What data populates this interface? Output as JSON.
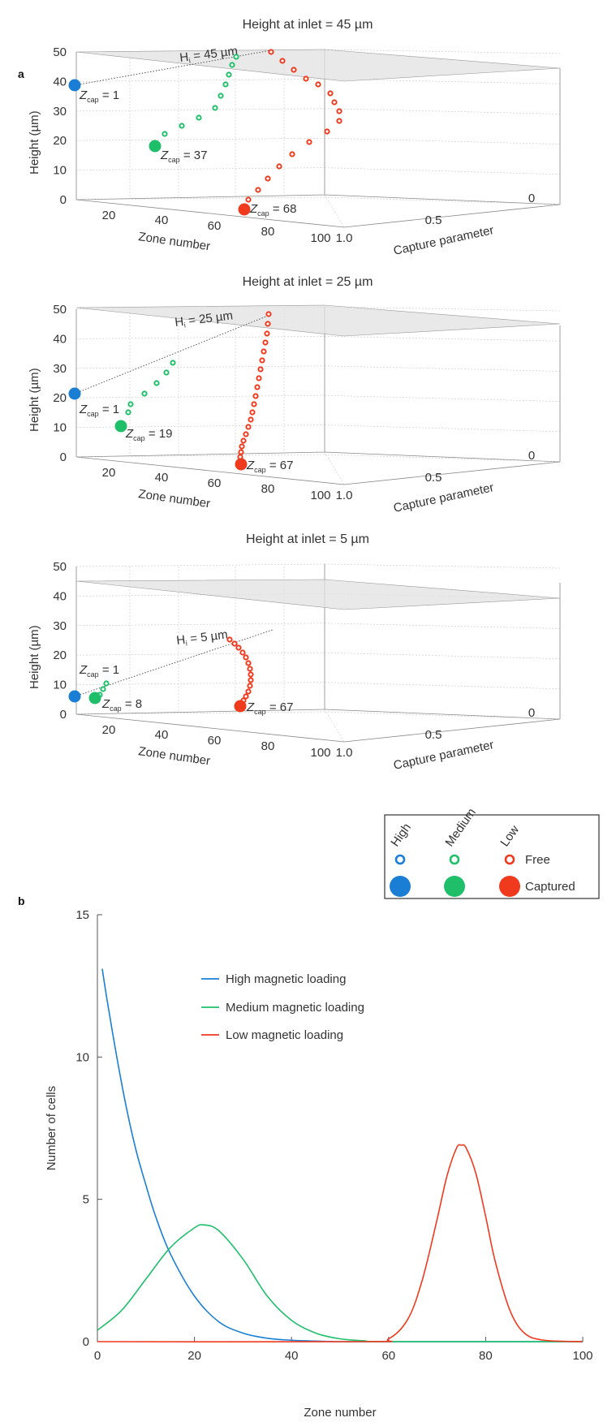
{
  "panel_a_label": "a",
  "panel_b_label": "b",
  "colors": {
    "high": "#1a7fd4",
    "medium": "#1fbf6a",
    "low": "#f03a1e"
  },
  "chart_data": [
    {
      "type": "scatter",
      "panel": "a",
      "title": "Height at inlet = 45 µm",
      "ylabel": "Height (µm)",
      "xlabel": "Zone number",
      "zlabel": "Capture parameter",
      "height_ticks": [
        "0",
        "10",
        "20",
        "30",
        "40",
        "50"
      ],
      "zone_ticks": [
        "20",
        "40",
        "60",
        "80",
        "100"
      ],
      "capture_ticks": [
        "1.0",
        "0.5",
        "0"
      ],
      "inlet_label_main": "H",
      "inlet_label_sub": "i",
      "inlet_label_rest": " = 45 µm",
      "captures": [
        {
          "series": "high",
          "zcap_text": "= 1"
        },
        {
          "series": "medium",
          "zcap_text": "= 37"
        },
        {
          "series": "low",
          "zcap_text": "= 68"
        }
      ]
    },
    {
      "type": "scatter",
      "panel": "a",
      "title": "Height at inlet = 25 µm",
      "ylabel": "Height (µm)",
      "xlabel": "Zone number",
      "zlabel": "Capture parameter",
      "height_ticks": [
        "0",
        "10",
        "20",
        "30",
        "40",
        "50"
      ],
      "zone_ticks": [
        "20",
        "40",
        "60",
        "80",
        "100"
      ],
      "capture_ticks": [
        "1.0",
        "0.5",
        "0"
      ],
      "inlet_label_main": "H",
      "inlet_label_sub": "i",
      "inlet_label_rest": " = 25 µm",
      "captures": [
        {
          "series": "high",
          "zcap_text": "= 1"
        },
        {
          "series": "medium",
          "zcap_text": "= 19"
        },
        {
          "series": "low",
          "zcap_text": "= 67"
        }
      ]
    },
    {
      "type": "scatter",
      "panel": "a",
      "title": "Height at inlet = 5 µm",
      "ylabel": "Height (µm)",
      "xlabel": "Zone number",
      "zlabel": "Capture parameter",
      "height_ticks": [
        "0",
        "10",
        "20",
        "30",
        "40",
        "50"
      ],
      "zone_ticks": [
        "20",
        "40",
        "60",
        "80",
        "100"
      ],
      "capture_ticks": [
        "1.0",
        "0.5",
        "0"
      ],
      "inlet_label_main": "H",
      "inlet_label_sub": "i",
      "inlet_label_rest": " = 5 µm",
      "captures": [
        {
          "series": "high",
          "zcap_text": "= 1"
        },
        {
          "series": "medium",
          "zcap_text": "= 8"
        },
        {
          "series": "low",
          "zcap_text": "= 67"
        }
      ]
    },
    {
      "type": "line",
      "panel": "b",
      "xlabel": "Zone number",
      "ylabel": "Number of cells",
      "xlim": [
        0,
        100
      ],
      "ylim": [
        0,
        15
      ],
      "xticks": [
        0,
        20,
        40,
        60,
        80,
        100
      ],
      "yticks": [
        0,
        5,
        10,
        15
      ],
      "grid": false,
      "legend_position": "top-center",
      "series": [
        {
          "name": "High magnetic loading",
          "color": "#1a7fd4",
          "x": [
            1,
            2,
            4,
            6,
            8,
            10,
            12,
            15,
            20,
            25,
            30,
            35,
            40,
            45,
            50,
            60,
            100
          ],
          "values": [
            13.1,
            12,
            10,
            8.2,
            6.7,
            5.5,
            4.4,
            3.1,
            1.6,
            0.7,
            0.3,
            0.12,
            0.05,
            0.02,
            0,
            0,
            0
          ]
        },
        {
          "name": "Medium magnetic loading",
          "color": "#1fbf6a",
          "x": [
            0,
            5,
            10,
            15,
            20,
            22,
            25,
            30,
            35,
            40,
            45,
            50,
            55,
            60,
            100
          ],
          "values": [
            0.4,
            1.1,
            2.2,
            3.3,
            4.0,
            4.1,
            3.9,
            2.9,
            1.6,
            0.75,
            0.3,
            0.1,
            0.03,
            0,
            0
          ]
        },
        {
          "name": "Low magnetic loading",
          "color": "#f03a1e",
          "x": [
            0,
            55,
            60,
            64,
            67,
            70,
            72,
            74,
            75,
            76,
            78,
            80,
            82,
            85,
            88,
            92,
            100
          ],
          "values": [
            0,
            0,
            0.1,
            0.8,
            2.2,
            4.3,
            5.8,
            6.8,
            6.9,
            6.8,
            5.9,
            4.4,
            2.8,
            1.1,
            0.3,
            0.05,
            0
          ]
        }
      ]
    }
  ],
  "legend_box": {
    "columns": [
      "High",
      "Medium",
      "Low"
    ],
    "rows": [
      "Free",
      "Captured"
    ]
  }
}
